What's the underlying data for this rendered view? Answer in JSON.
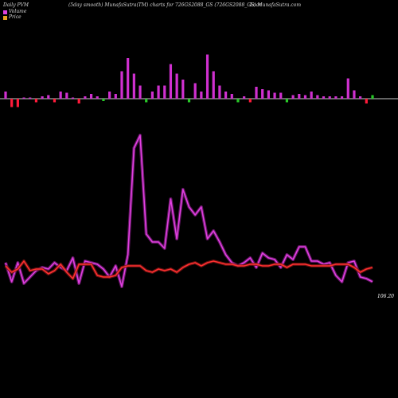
{
  "header": {
    "left_label": "Daily PVM",
    "title": "(5day smooth) MunafaSutra(TM) charts for 726GS2088_GS (726GS2088_GS) MunafaSutra.com",
    "title_suffix": "Loan"
  },
  "legend": [
    {
      "label": "Volume",
      "color": "#e040e0"
    },
    {
      "label": "Price",
      "color": "#e8a020"
    }
  ],
  "price_label": "106.20",
  "chart_data": [
    {
      "type": "bar",
      "panel": "volume",
      "title": "",
      "baseline_color": "#c8c8c8",
      "up_color": "#d030d0",
      "down_color": "#ff1a3a",
      "neutral_color": "#28c828",
      "bars": [
        {
          "v": 6,
          "c": "up"
        },
        {
          "v": -7,
          "c": "down"
        },
        {
          "v": -7,
          "c": "down"
        },
        {
          "v": 1,
          "c": "up"
        },
        {
          "v": 1,
          "c": "up"
        },
        {
          "v": -3,
          "c": "down"
        },
        {
          "v": 2,
          "c": "up"
        },
        {
          "v": 3,
          "c": "up"
        },
        {
          "v": -3,
          "c": "down"
        },
        {
          "v": 6,
          "c": "up"
        },
        {
          "v": 5,
          "c": "up"
        },
        {
          "v": 1,
          "c": "up"
        },
        {
          "v": -4,
          "c": "down"
        },
        {
          "v": 2,
          "c": "up"
        },
        {
          "v": 4,
          "c": "up"
        },
        {
          "v": 2,
          "c": "up"
        },
        {
          "v": -2,
          "c": "neutral"
        },
        {
          "v": 6,
          "c": "up"
        },
        {
          "v": 4,
          "c": "up"
        },
        {
          "v": 23,
          "c": "up"
        },
        {
          "v": 34,
          "c": "up"
        },
        {
          "v": 21,
          "c": "up"
        },
        {
          "v": 11,
          "c": "up"
        },
        {
          "v": -3,
          "c": "neutral"
        },
        {
          "v": 6,
          "c": "up"
        },
        {
          "v": 11,
          "c": "up"
        },
        {
          "v": 11,
          "c": "up"
        },
        {
          "v": 29,
          "c": "up"
        },
        {
          "v": 21,
          "c": "up"
        },
        {
          "v": 16,
          "c": "up"
        },
        {
          "v": -3,
          "c": "neutral"
        },
        {
          "v": 13,
          "c": "up"
        },
        {
          "v": 6,
          "c": "up"
        },
        {
          "v": 37,
          "c": "up"
        },
        {
          "v": 23,
          "c": "up"
        },
        {
          "v": 11,
          "c": "up"
        },
        {
          "v": 6,
          "c": "up"
        },
        {
          "v": 4,
          "c": "up"
        },
        {
          "v": -3,
          "c": "neutral"
        },
        {
          "v": 2,
          "c": "up"
        },
        {
          "v": -3,
          "c": "down"
        },
        {
          "v": 10,
          "c": "up"
        },
        {
          "v": 8,
          "c": "up"
        },
        {
          "v": 7,
          "c": "up"
        },
        {
          "v": 5,
          "c": "up"
        },
        {
          "v": 5,
          "c": "up"
        },
        {
          "v": -3,
          "c": "neutral"
        },
        {
          "v": 3,
          "c": "up"
        },
        {
          "v": 4,
          "c": "up"
        },
        {
          "v": 3,
          "c": "up"
        },
        {
          "v": 6,
          "c": "up"
        },
        {
          "v": 3,
          "c": "up"
        },
        {
          "v": 2,
          "c": "up"
        },
        {
          "v": 2,
          "c": "up"
        },
        {
          "v": 2,
          "c": "up"
        },
        {
          "v": 2,
          "c": "up"
        },
        {
          "v": 17,
          "c": "up"
        },
        {
          "v": 7,
          "c": "up"
        },
        {
          "v": 2,
          "c": "up"
        },
        {
          "v": -4,
          "c": "down"
        },
        {
          "v": 3,
          "c": "neutral"
        }
      ]
    },
    {
      "type": "line",
      "panel": "price",
      "title": "",
      "series": [
        {
          "color": "#e040e0",
          "glow": "#7a1a7a",
          "values": [
            3.5,
            2.3,
            3.5,
            2.2,
            2.6,
            3.0,
            3.2,
            3.1,
            3.5,
            3.2,
            3.0,
            3.8,
            2.2,
            3.6,
            3.5,
            3.4,
            3.1,
            2.6,
            3.3,
            2.0,
            4.0,
            10.7,
            11.5,
            5.3,
            4.8,
            4.8,
            4.4,
            7.5,
            5.0,
            8.1,
            7.0,
            6.5,
            7.0,
            5.0,
            5.5,
            4.8,
            4.0,
            3.5,
            3.3,
            3.5,
            3.8,
            3.2,
            4.1,
            3.8,
            3.7,
            3.2,
            4.0,
            3.7,
            4.5,
            4.5,
            3.6,
            3.6,
            3.4,
            3.5,
            2.7,
            2.3,
            3.5,
            3.6,
            2.6,
            2.5,
            2.3
          ]
        },
        {
          "color": "#ff3030",
          "glow": "#7a1414",
          "values": [
            3.3,
            2.9,
            3.1,
            3.6,
            3.0,
            3.1,
            3.1,
            2.8,
            3.0,
            3.4,
            2.9,
            2.5,
            3.4,
            3.4,
            3.4,
            2.7,
            2.6,
            2.6,
            2.7,
            3.2,
            3.3,
            3.3,
            3.3,
            3.0,
            2.9,
            3.1,
            3.0,
            3.1,
            2.9,
            3.2,
            3.4,
            3.5,
            3.3,
            3.5,
            3.6,
            3.5,
            3.4,
            3.4,
            3.3,
            3.3,
            3.4,
            3.4,
            3.3,
            3.3,
            3.4,
            3.4,
            3.2,
            3.4,
            3.4,
            3.4,
            3.3,
            3.3,
            3.3,
            3.3,
            3.4,
            3.4,
            3.4,
            3.2,
            2.9,
            3.1,
            3.2
          ]
        }
      ]
    }
  ]
}
